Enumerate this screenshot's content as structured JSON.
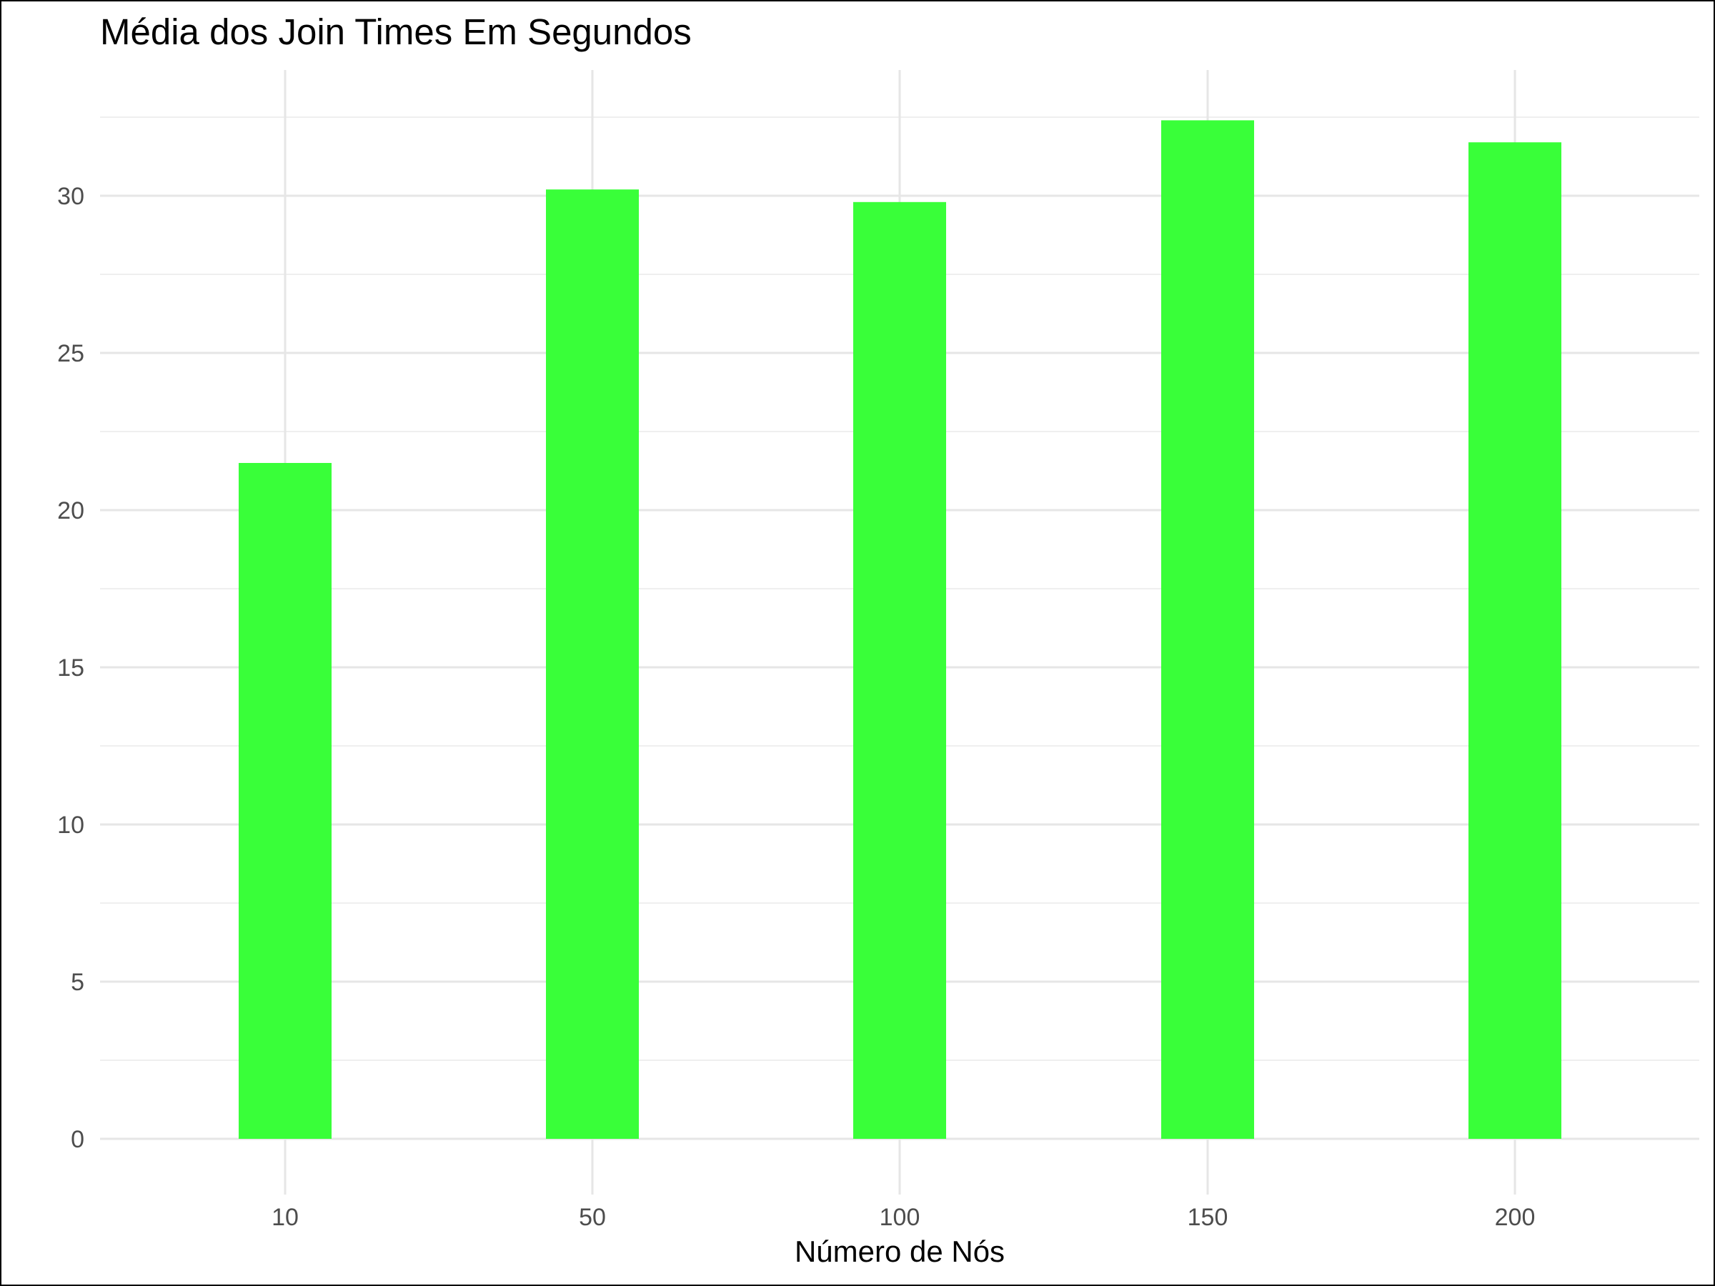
{
  "chart_data": {
    "type": "bar",
    "title": "Média dos Join Times Em Segundos",
    "xlabel": "Número de Nós",
    "ylabel": "",
    "categories": [
      "10",
      "50",
      "100",
      "150",
      "200"
    ],
    "values": [
      21.5,
      30.2,
      29.8,
      32.4,
      31.7
    ],
    "ylim": [
      0,
      32.4
    ],
    "yticks": [
      0,
      5,
      10,
      15,
      20,
      25,
      30
    ],
    "grid": true,
    "legend": "none",
    "bar_color": "#33ff33"
  }
}
